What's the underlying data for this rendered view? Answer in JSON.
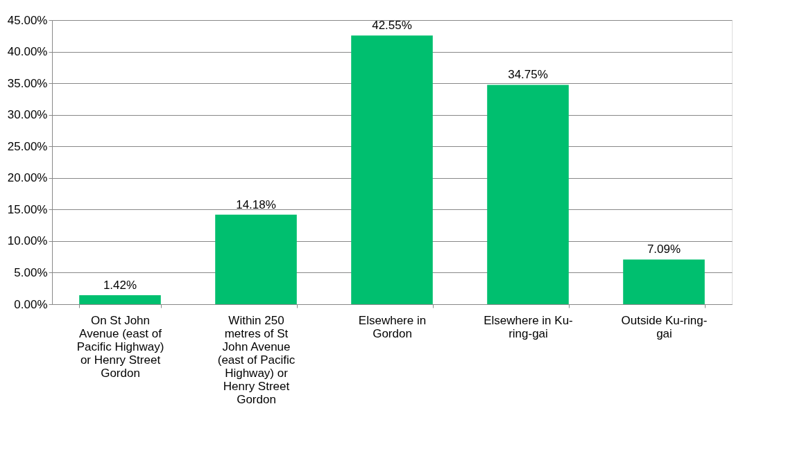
{
  "chart_data": {
    "type": "bar",
    "categories": [
      "On St John Avenue (east of Pacific Highway) or Henry Street Gordon",
      "Within 250 metres of St John Avenue (east of Pacific Highway) or Henry Street Gordon",
      "Elsewhere in Gordon",
      "Elsewhere in Ku-ring-gai",
      "Outside Ku-ring-gai"
    ],
    "values": [
      1.42,
      14.18,
      42.55,
      34.75,
      7.09
    ],
    "value_labels": [
      "1.42%",
      "14.18%",
      "42.55%",
      "34.75%",
      "7.09%"
    ],
    "color": "#00bf6f",
    "ylim": [
      0,
      45
    ],
    "yticks": [
      {
        "value": 0,
        "label": "0.00%"
      },
      {
        "value": 5,
        "label": "5.00%"
      },
      {
        "value": 10,
        "label": "10.00%"
      },
      {
        "value": 15,
        "label": "15.00%"
      },
      {
        "value": 20,
        "label": "20.00%"
      },
      {
        "value": 25,
        "label": "25.00%"
      },
      {
        "value": 30,
        "label": "30.00%"
      },
      {
        "value": 35,
        "label": "35.00%"
      },
      {
        "value": 40,
        "label": "40.00%"
      },
      {
        "value": 45,
        "label": "45.00%"
      }
    ],
    "grid": "y"
  }
}
